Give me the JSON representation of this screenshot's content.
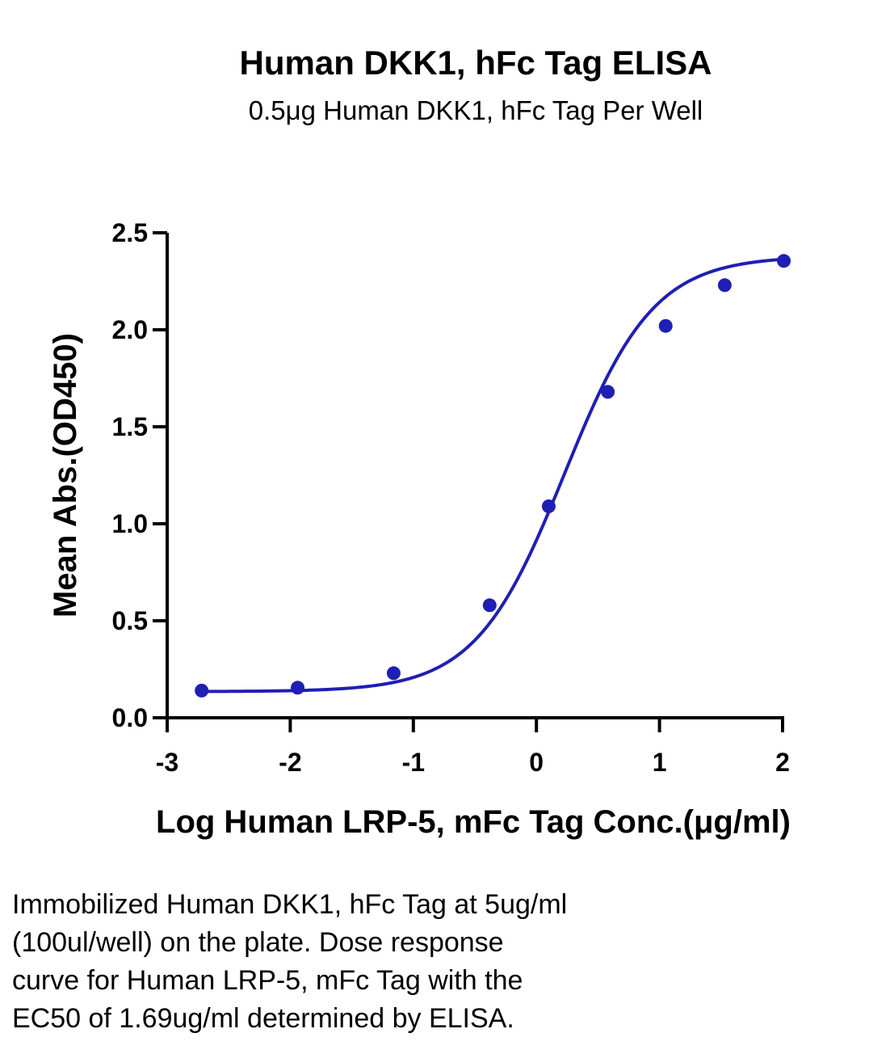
{
  "chart_data": {
    "type": "scatter",
    "title": "Human DKK1, hFc Tag ELISA",
    "subtitle": "0.5μg Human DKK1, hFc Tag Per Well",
    "xlabel": "Log Human LRP-5, mFc Tag Conc.(μg/ml)",
    "ylabel": "Mean Abs.(OD450)",
    "xlim": [
      -3,
      2
    ],
    "ylim": [
      0,
      2.5
    ],
    "xticks": [
      -3,
      -2,
      -1,
      0,
      1,
      2
    ],
    "xtick_labels": [
      "-3",
      "-2",
      "-1",
      "0",
      "1",
      "2"
    ],
    "yticks": [
      0,
      0.5,
      1,
      1.5,
      2,
      2.5
    ],
    "ytick_labels": [
      "0.0",
      "0.5",
      "1.0",
      "1.5",
      "2.0",
      "2.5"
    ],
    "grid": false,
    "series": [
      {
        "color": "#1f1fb4",
        "x": [
          -2.72,
          -1.94,
          -1.16,
          -0.38,
          0.1,
          0.58,
          1.05,
          1.53,
          2.01
        ],
        "y": [
          0.14,
          0.155,
          0.23,
          0.58,
          1.09,
          1.68,
          2.02,
          2.23,
          2.355
        ]
      }
    ],
    "fit_curve": {
      "model": "4PL",
      "bottom": 0.135,
      "top": 2.38,
      "log_ec50": 0.228,
      "hill_slope": 1.2
    }
  },
  "caption": {
    "lines": [
      "Immobilized Human DKK1, hFc Tag at 5ug/ml",
      "(100ul/well) on the plate. Dose response",
      "curve for Human LRP-5, mFc Tag with the",
      "EC50 of 1.69ug/ml determined by ELISA."
    ]
  }
}
